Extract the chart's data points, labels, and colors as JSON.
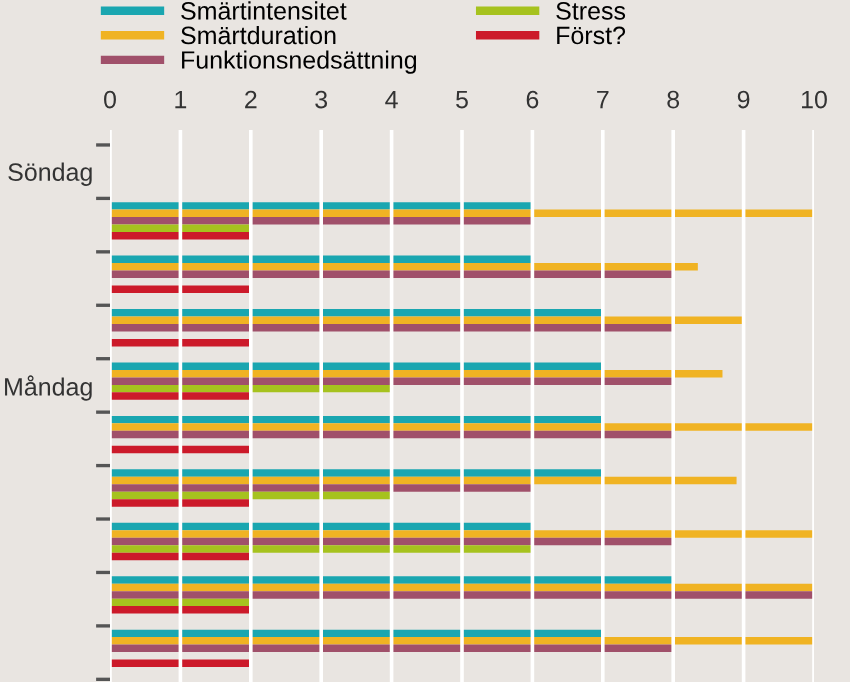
{
  "chart_data": {
    "type": "bar",
    "orientation": "horizontal",
    "categories": [
      "Söndag",
      null,
      null,
      null,
      "Måndag",
      null,
      null,
      null,
      null,
      null
    ],
    "series": [
      {
        "name": "Smärtintensitet",
        "color": "#1aa6b0",
        "values": [
          null,
          6,
          6,
          7,
          7,
          7,
          7,
          6,
          8,
          7
        ]
      },
      {
        "name": "Smärtduration",
        "color": "#f0b323",
        "values": [
          null,
          10,
          8.35,
          9,
          8.7,
          10,
          8.9,
          10,
          10,
          10
        ]
      },
      {
        "name": "Funktionsnedsättning",
        "color": "#a0506a",
        "values": [
          null,
          6,
          8,
          8,
          8,
          8,
          6,
          8,
          10,
          8
        ]
      },
      {
        "name": "Stress",
        "color": "#a6c21e",
        "values": [
          null,
          2,
          null,
          null,
          4,
          null,
          4,
          6,
          2,
          null
        ]
      },
      {
        "name": "Först?",
        "color": "#cc1a2a",
        "values": [
          null,
          2,
          2,
          2,
          2,
          2,
          2,
          2,
          2,
          2
        ]
      }
    ],
    "xlim": [
      0,
      10
    ],
    "xticks": [
      0,
      1,
      2,
      3,
      4,
      5,
      6,
      7,
      8,
      9,
      10
    ],
    "grid": "x",
    "legend": "top"
  }
}
